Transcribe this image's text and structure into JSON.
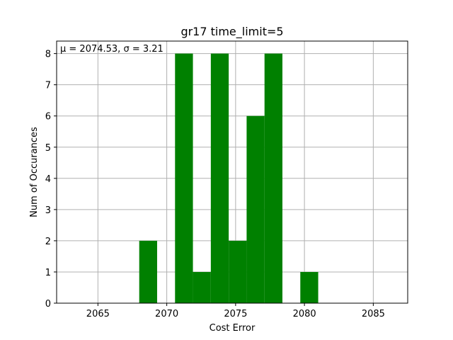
{
  "chart_data": {
    "type": "bar",
    "title": "gr17 time_limit=5",
    "xlabel": "Cost Error",
    "ylabel": "Num of Occurances",
    "annotation": "μ = 2074.53,  σ = 3.21",
    "xlim": [
      2062,
      2087.5
    ],
    "ylim": [
      0,
      8.4
    ],
    "xticks": [
      2065,
      2070,
      2075,
      2080,
      2085
    ],
    "yticks": [
      0,
      1,
      2,
      3,
      4,
      5,
      6,
      7,
      8
    ],
    "grid": true,
    "bar_color": "#008000",
    "bins": [
      {
        "x0": 2068.0,
        "x1": 2069.3,
        "value": 2
      },
      {
        "x0": 2070.6,
        "x1": 2071.9,
        "value": 8
      },
      {
        "x0": 2071.9,
        "x1": 2073.2,
        "value": 1
      },
      {
        "x0": 2073.2,
        "x1": 2074.5,
        "value": 8
      },
      {
        "x0": 2074.5,
        "x1": 2075.8,
        "value": 2
      },
      {
        "x0": 2075.8,
        "x1": 2077.1,
        "value": 6
      },
      {
        "x0": 2077.1,
        "x1": 2078.4,
        "value": 8
      },
      {
        "x0": 2079.7,
        "x1": 2081.0,
        "value": 1
      }
    ]
  }
}
